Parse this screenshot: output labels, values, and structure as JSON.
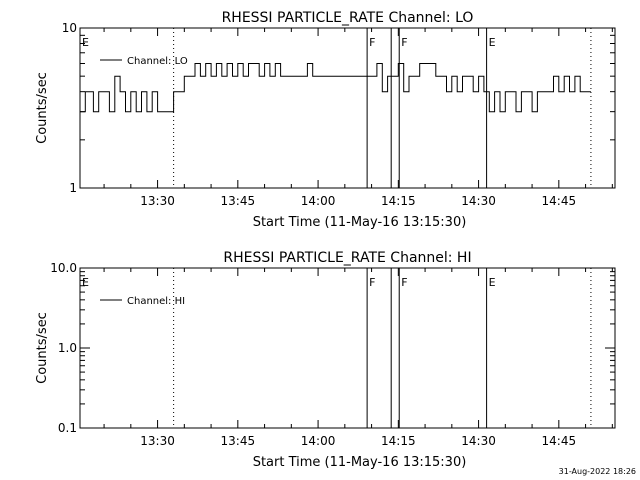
{
  "chart_data": [
    {
      "type": "line",
      "title": "RHESSI PARTICLE_RATE Channel: LO",
      "xlabel": "Start Time (11-May-16 13:15:30)",
      "ylabel": "Counts/sec",
      "yscale": "log",
      "ylim": [
        1,
        10
      ],
      "ytick_labels": [
        "1",
        "10"
      ],
      "ytick_values": [
        1,
        10
      ],
      "xlim": [
        "13:15:30",
        "14:55:30"
      ],
      "xtick_labels": [
        "13:30",
        "13:45",
        "14:00",
        "14:15",
        "14:30",
        "14:45"
      ],
      "legend": {
        "position": "top-left",
        "entries": [
          "Channel: LO"
        ]
      },
      "series": [
        {
          "name": "Channel: LO",
          "x": [
            "13:15:30",
            "13:16:30",
            "13:17:00",
            "13:18:00",
            "13:19:00",
            "13:20:00",
            "13:21:00",
            "13:22:00",
            "13:23:00",
            "13:24:00",
            "13:25:00",
            "13:26:00",
            "13:27:00",
            "13:28:00",
            "13:29:00",
            "13:30:00",
            "13:31:00",
            "13:32:00",
            "13:33:00",
            "13:34:00",
            "13:35:00",
            "13:36:00",
            "13:37:00",
            "13:38:00",
            "13:39:00",
            "13:40:00",
            "13:41:00",
            "13:42:00",
            "13:43:00",
            "13:44:00",
            "13:45:00",
            "13:46:00",
            "13:47:00",
            "13:48:00",
            "13:49:00",
            "13:50:00",
            "13:51:00",
            "13:52:00",
            "13:53:00",
            "13:54:00",
            "13:55:00",
            "13:56:00",
            "13:57:00",
            "13:58:00",
            "13:59:00",
            "14:00:00",
            "14:01:00",
            "14:02:00",
            "14:03:00",
            "14:04:00",
            "14:05:00",
            "14:06:00",
            "14:07:00",
            "14:08:00",
            "14:09:00",
            "14:10:00",
            "14:11:00",
            "14:12:00",
            "14:13:00",
            "14:14:00",
            "14:15:00",
            "14:16:00",
            "14:17:00",
            "14:18:00",
            "14:19:00",
            "14:20:00",
            "14:21:00",
            "14:22:00",
            "14:23:00",
            "14:24:00",
            "14:25:00",
            "14:26:00",
            "14:27:00",
            "14:28:00",
            "14:29:00",
            "14:30:00",
            "14:31:00",
            "14:32:00",
            "14:33:00",
            "14:34:00",
            "14:35:00",
            "14:36:00",
            "14:37:00",
            "14:38:00",
            "14:39:00",
            "14:40:00",
            "14:41:00",
            "14:42:00",
            "14:43:00",
            "14:44:00",
            "14:45:00",
            "14:46:00",
            "14:47:00",
            "14:48:00",
            "14:49:00",
            "14:50:00"
          ],
          "values": [
            3,
            4,
            4,
            3,
            4,
            4,
            3,
            5,
            4,
            3,
            4,
            3,
            4,
            3,
            4,
            3,
            3,
            3,
            4,
            4,
            5,
            5,
            6,
            5,
            6,
            5,
            6,
            5,
            6,
            5,
            6,
            5,
            6,
            6,
            5,
            6,
            5,
            6,
            5,
            5,
            5,
            5,
            5,
            6,
            5,
            5,
            5,
            5,
            5,
            5,
            5,
            5,
            5,
            5,
            5,
            5,
            6,
            4,
            5,
            5,
            6,
            4,
            5,
            5,
            6,
            6,
            6,
            5,
            5,
            4,
            5,
            4,
            5,
            5,
            4,
            5,
            4,
            3,
            4,
            3,
            4,
            4,
            3,
            4,
            4,
            3,
            4,
            4,
            4,
            5,
            4,
            5,
            4,
            5,
            4,
            4
          ]
        }
      ],
      "event_markers": [
        {
          "label": "E",
          "time": "13:15:30",
          "style": "solid"
        },
        {
          "label": "",
          "time": "13:33:00",
          "style": "dotted"
        },
        {
          "label": "F",
          "time": "14:09:10",
          "style": "solid"
        },
        {
          "label": "",
          "time": "14:13:40",
          "style": "solid"
        },
        {
          "label": "F",
          "time": "14:15:10",
          "style": "solid"
        },
        {
          "label": "E",
          "time": "14:31:30",
          "style": "solid"
        },
        {
          "label": "",
          "time": "14:51:00",
          "style": "dotted"
        }
      ]
    },
    {
      "type": "line",
      "title": "RHESSI PARTICLE_RATE Channel: HI",
      "xlabel": "Start Time (11-May-16 13:15:30)",
      "ylabel": "Counts/sec",
      "yscale": "log",
      "ylim": [
        0.1,
        10
      ],
      "ytick_labels": [
        "0.1",
        "1.0",
        "10.0"
      ],
      "ytick_values": [
        0.1,
        1,
        10
      ],
      "xlim": [
        "13:15:30",
        "14:55:30"
      ],
      "xtick_labels": [
        "13:30",
        "13:45",
        "14:00",
        "14:15",
        "14:30",
        "14:45"
      ],
      "legend": {
        "position": "top-left",
        "entries": [
          "Channel: HI"
        ]
      },
      "series": [
        {
          "name": "Channel: HI",
          "x": [],
          "values": []
        }
      ],
      "event_markers": [
        {
          "label": "E",
          "time": "13:15:30",
          "style": "solid"
        },
        {
          "label": "",
          "time": "13:33:00",
          "style": "dotted"
        },
        {
          "label": "F",
          "time": "14:09:10",
          "style": "solid"
        },
        {
          "label": "",
          "time": "14:13:40",
          "style": "solid"
        },
        {
          "label": "F",
          "time": "14:15:10",
          "style": "solid"
        },
        {
          "label": "E",
          "time": "14:31:30",
          "style": "solid"
        },
        {
          "label": "",
          "time": "14:51:00",
          "style": "dotted"
        }
      ]
    }
  ],
  "footer": {
    "timestamp": "31-Aug-2022 18:26"
  }
}
